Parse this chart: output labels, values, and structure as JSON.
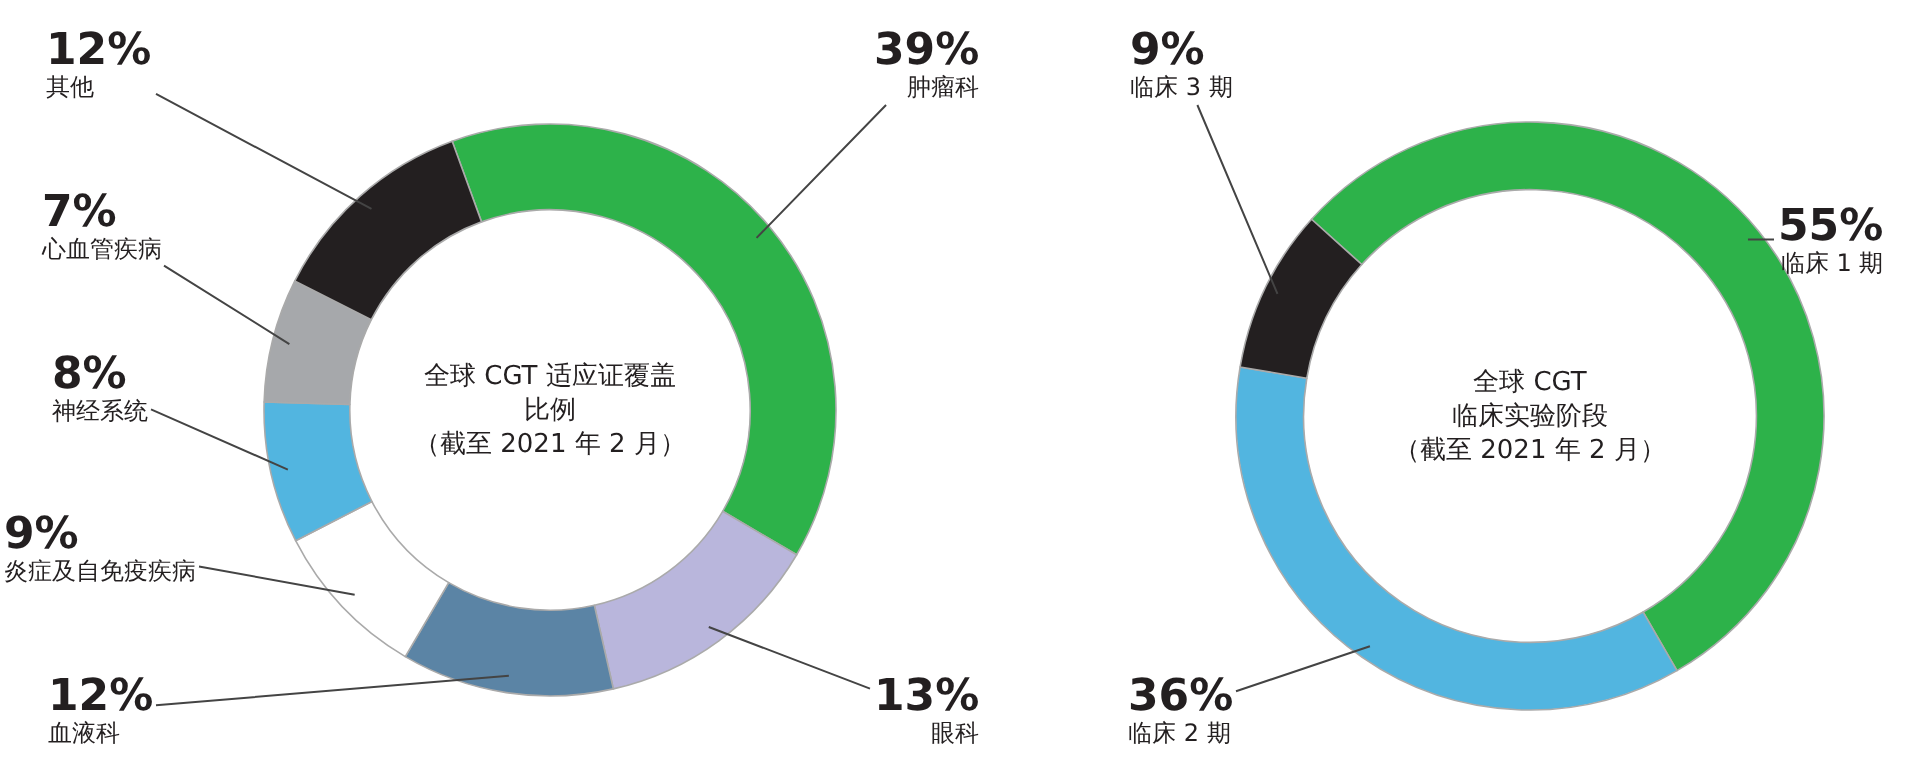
{
  "chart_data": [
    {
      "type": "donut",
      "title": "全球 CGT 适应证覆盖比例（截至 2021 年 2 月）",
      "categories": [
        "肿瘤科",
        "眼科",
        "血液科",
        "炎症及自免疫疾病",
        "神经系统",
        "心血管疾病",
        "其他"
      ],
      "values": [
        39,
        13,
        12,
        9,
        8,
        7,
        12
      ],
      "value_labels": [
        "39%",
        "13%",
        "12%",
        "9%",
        "8%",
        "7%",
        "12%"
      ],
      "colors": [
        "#2db24a",
        "#b9b6dc",
        "#5b84a5",
        "#ffffff",
        "#52b5e0",
        "#a6a8ab",
        "#231f20"
      ],
      "legend": false
    },
    {
      "type": "donut",
      "title": "全球 CGT\n临床实验阶段（截至 2021 年 2 月）",
      "categories": [
        "临床 1 期",
        "临床 2 期",
        "临床 3 期"
      ],
      "values": [
        55,
        36,
        9
      ],
      "value_labels": [
        "55%",
        "36%",
        "9%"
      ],
      "colors": [
        "#2db24a",
        "#52b5e0",
        "#231f20"
      ],
      "legend": false
    }
  ]
}
